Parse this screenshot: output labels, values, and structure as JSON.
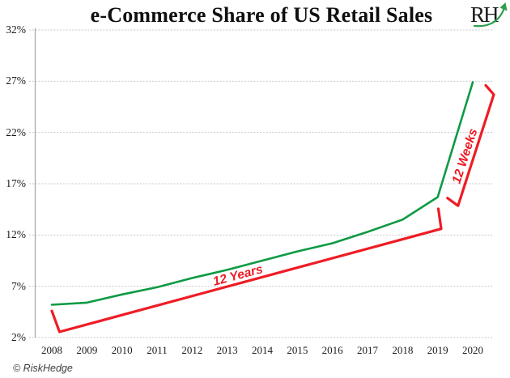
{
  "logo": {
    "text": "RH",
    "arrow_color": "#2d9e4d"
  },
  "footer": {
    "credit": "© RiskHedge"
  },
  "chart_data": {
    "type": "line",
    "title": "e-Commerce Share of US Retail Sales",
    "xlabel": "",
    "ylabel": "",
    "x": [
      2008,
      2009,
      2010,
      2011,
      2012,
      2013,
      2014,
      2015,
      2016,
      2017,
      2018,
      2019,
      2020
    ],
    "xtick_labels": [
      "2008",
      "2009",
      "2010",
      "2011",
      "2012",
      "2013",
      "2014",
      "2015",
      "2016",
      "2017",
      "2018",
      "2019",
      "2020"
    ],
    "ylim": [
      2,
      32
    ],
    "yticks": [
      {
        "value": 32,
        "label": "32%"
      },
      {
        "value": 27,
        "label": "27%"
      },
      {
        "value": 22,
        "label": "22%"
      },
      {
        "value": 17,
        "label": "17%"
      },
      {
        "value": 12,
        "label": "12%"
      },
      {
        "value": 7,
        "label": "7%"
      },
      {
        "value": 2,
        "label": "2%"
      }
    ],
    "grid": true,
    "legend": false,
    "series": [
      {
        "name": "e-commerce share of US retail sales (%)",
        "color": "#0d9a44",
        "values": [
          5.2,
          5.4,
          6.2,
          6.9,
          7.8,
          8.6,
          9.5,
          10.4,
          11.2,
          12.3,
          13.5,
          15.7,
          26.9
        ]
      }
    ],
    "annotations": [
      {
        "label": "12 Years",
        "color": "#ee1c25",
        "rotation_deg": -15,
        "path_year_pct": [
          [
            2008.0,
            4.6
          ],
          [
            2008.22,
            2.55
          ],
          [
            2019.1,
            12.6
          ],
          [
            2019.02,
            14.55
          ]
        ],
        "label_anchor_year_pct": [
          2013.3,
          8.0
        ]
      },
      {
        "label": "12 Weeks",
        "color": "#ee1c25",
        "rotation_deg": -72,
        "path_year_pct": [
          [
            2019.28,
            15.6
          ],
          [
            2019.58,
            14.85
          ],
          [
            2020.6,
            25.7
          ],
          [
            2020.37,
            26.6
          ]
        ],
        "label_anchor_year_pct": [
          2019.79,
          19.7
        ]
      }
    ]
  }
}
